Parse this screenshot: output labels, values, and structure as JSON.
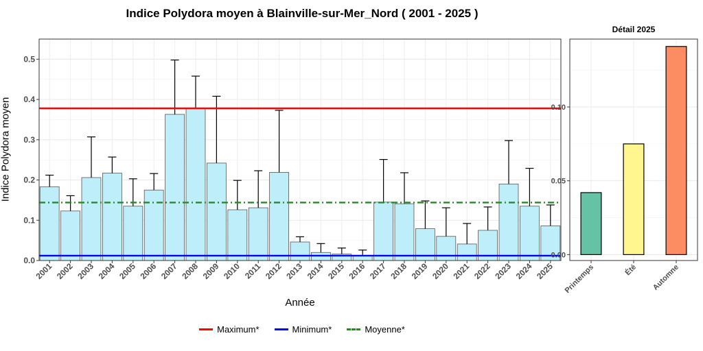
{
  "chart_data": [
    {
      "type": "bar",
      "title": "Indice Polydora moyen à Blainville-sur-Mer_Nord ( 2001 - 2025 )",
      "xlabel": "Année",
      "ylabel": "Indice Polydora moyen",
      "ylim": [
        0,
        0.55
      ],
      "yticks": [
        "0.0",
        "0.1",
        "0.2",
        "0.3",
        "0.4",
        "0.5"
      ],
      "grid": true,
      "bar_color": "#bfeefb",
      "categories": [
        "2001",
        "2002",
        "2003",
        "2004",
        "2005",
        "2006",
        "2007",
        "2008",
        "2009",
        "2010",
        "2011",
        "2012",
        "2013",
        "2014",
        "2015",
        "2016",
        "2017",
        "2018",
        "2019",
        "2020",
        "2021",
        "2022",
        "2023",
        "2024",
        "2025"
      ],
      "values": [
        0.183,
        0.123,
        0.206,
        0.217,
        0.135,
        0.175,
        0.363,
        0.378,
        0.242,
        0.126,
        0.131,
        0.219,
        0.046,
        0.02,
        0.016,
        0.012,
        0.145,
        0.141,
        0.079,
        0.06,
        0.041,
        0.075,
        0.19,
        0.135,
        0.086
      ],
      "error_upper": [
        0.212,
        0.161,
        0.307,
        0.257,
        0.203,
        0.216,
        0.498,
        0.458,
        0.408,
        0.199,
        0.223,
        0.373,
        0.059,
        0.042,
        0.031,
        0.026,
        0.251,
        0.218,
        0.148,
        0.131,
        0.092,
        0.133,
        0.298,
        0.229,
        0.138
      ],
      "reference_lines": [
        {
          "name": "Maximum*",
          "value": 0.378,
          "color": "#ff0000",
          "style": "solid"
        },
        {
          "name": "Minimum*",
          "value": 0.012,
          "color": "#0000ff",
          "style": "solid"
        },
        {
          "name": "Moyenne*",
          "value": 0.144,
          "color": "#228b22",
          "style": "dotdash"
        }
      ],
      "legend": "bottom"
    },
    {
      "type": "bar",
      "title": "Détail 2025",
      "categories": [
        "Printemps",
        "Été",
        "Automne"
      ],
      "values": [
        0.042,
        0.075,
        0.141
      ],
      "colors": [
        "#66c2a5",
        "#fff68f",
        "#fc8d62"
      ],
      "ylim": [
        -0.004,
        0.146
      ],
      "yticks": [
        "0.00",
        "0.05",
        "0.10"
      ],
      "grid": true
    }
  ]
}
